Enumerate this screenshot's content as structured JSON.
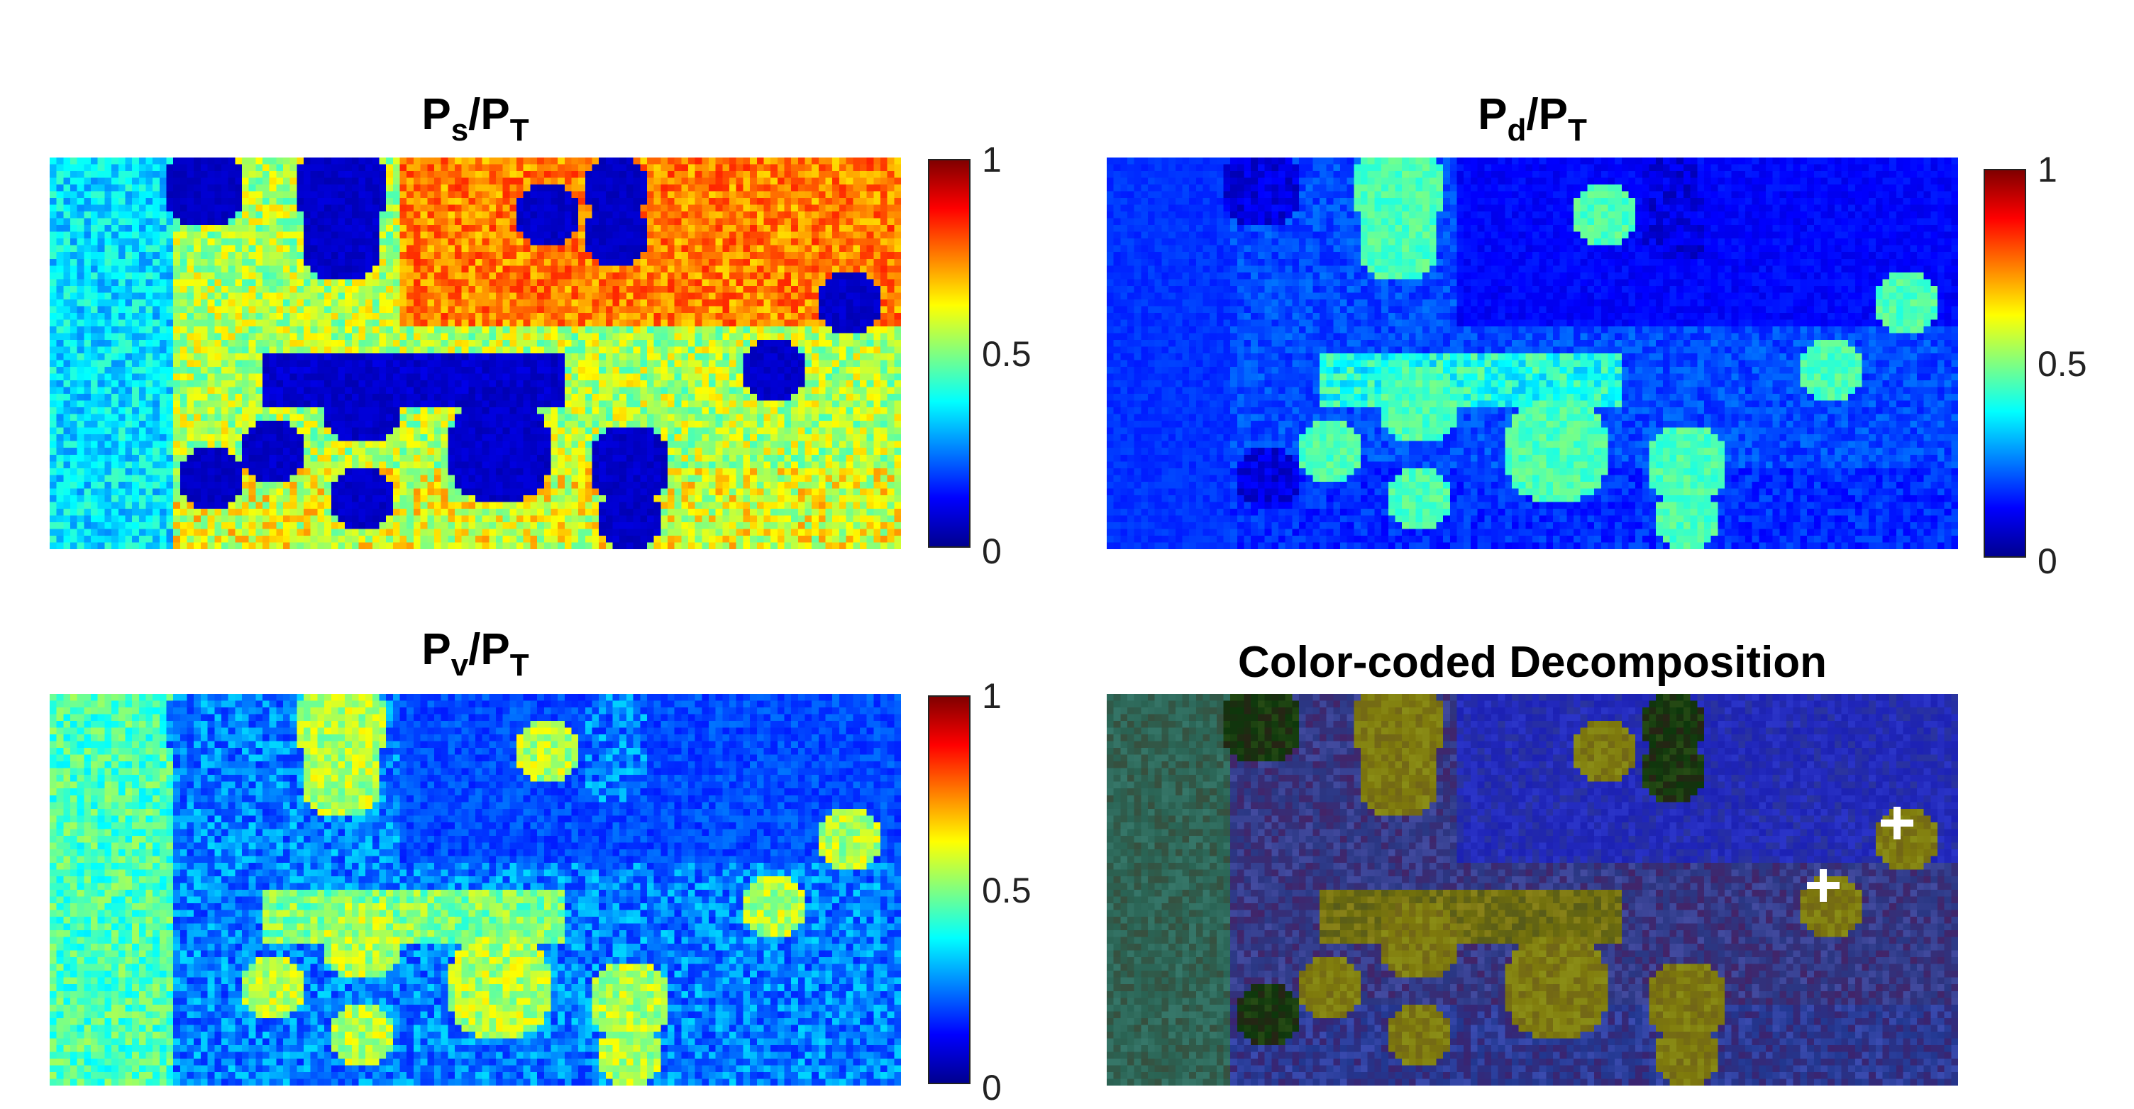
{
  "chart_data": [
    {
      "type": "heatmap",
      "title": {
        "base": "P",
        "sub": "s",
        "sep": "/P",
        "sub2": "T"
      },
      "colormap": "jet",
      "clim": [
        0,
        1
      ],
      "colorbar_ticks": [
        "0",
        "0.5",
        "1"
      ]
    },
    {
      "type": "heatmap",
      "title": {
        "base": "P",
        "sub": "d",
        "sep": "/P",
        "sub2": "T"
      },
      "colormap": "jet",
      "clim": [
        0,
        1
      ],
      "colorbar_ticks": [
        "0",
        "0.5",
        "1"
      ]
    },
    {
      "type": "heatmap",
      "title": {
        "base": "P",
        "sub": "v",
        "sep": "/P",
        "sub2": "T"
      },
      "colormap": "jet",
      "clim": [
        0,
        1
      ],
      "colorbar_ticks": [
        "0",
        "0.5",
        "1"
      ]
    },
    {
      "type": "heatmap",
      "title": {
        "text": "Color-coded Decomposition"
      },
      "colormap": "rgb",
      "markers": [
        {
          "symbol": "plus",
          "color": "#ffffff",
          "col_frac": 0.928,
          "row_frac": 0.33
        },
        {
          "symbol": "plus",
          "color": "#ffffff",
          "col_frac": 0.842,
          "row_frac": 0.49
        }
      ]
    }
  ]
}
